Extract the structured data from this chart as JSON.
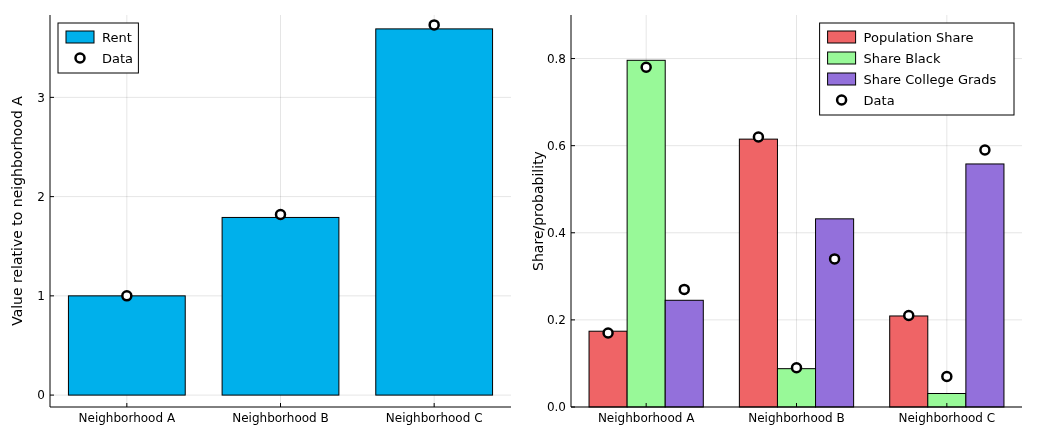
{
  "chart_data": [
    {
      "type": "bar",
      "ylabel": "Value relative to neighborhood A",
      "categories": [
        "Neighborhood A",
        "Neighborhood B",
        "Neighborhood C"
      ],
      "ylim": [
        -0.12,
        3.83
      ],
      "yticks": [
        0,
        1,
        2,
        3
      ],
      "grid": true,
      "legend": "top left",
      "series": [
        {
          "name": "Rent",
          "color": "#00b0eb",
          "values": [
            1.0,
            1.79,
            3.69
          ]
        },
        {
          "name": "Data",
          "type": "scatter",
          "marker": "circle",
          "color": "#000000",
          "values": [
            1.0,
            1.82,
            3.73
          ]
        }
      ]
    },
    {
      "type": "bar",
      "ylabel": "Share/probability",
      "categories": [
        "Neighborhood A",
        "Neighborhood B",
        "Neighborhood C"
      ],
      "ylim": [
        0,
        0.9
      ],
      "yticks": [
        {
          "value": 0,
          "label": "0.0"
        },
        0.2,
        0.4,
        0.6,
        0.8
      ],
      "grid": true,
      "legend": "top right",
      "series": [
        {
          "name": "Population Share",
          "color": "#ef6466",
          "values": [
            0.174,
            0.615,
            0.209
          ]
        },
        {
          "name": "Share Black",
          "color": "#98f998",
          "values": [
            0.796,
            0.088,
            0.031
          ]
        },
        {
          "name": "Share College Grads",
          "color": "#9370db",
          "values": [
            0.245,
            0.432,
            0.558
          ]
        },
        {
          "name": "Data",
          "type": "scatter",
          "marker": "circle",
          "color": "#000000",
          "values": [
            0.17,
            0.62,
            0.21
          ]
        },
        {
          "type": "scatter",
          "marker": "circle",
          "color": "#000000",
          "values": [
            0.78,
            0.09,
            0.07
          ]
        },
        {
          "type": "scatter",
          "marker": "circle",
          "color": "#000000",
          "values": [
            0.27,
            0.34,
            0.59
          ]
        }
      ]
    }
  ]
}
